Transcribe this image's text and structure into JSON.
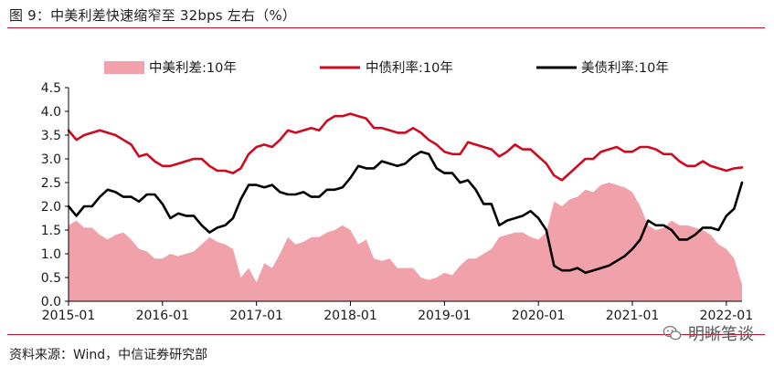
{
  "figure": {
    "title": "图 9：中美利差快速缩窄至 32bps 左右（%）",
    "source": "资料来源：Wind，中信证券研究部",
    "watermark": "明晰笔谈"
  },
  "colors": {
    "spread_fill": "#f0a1aa",
    "cn_line": "#cf0a1e",
    "us_line": "#000000",
    "rule": "#c8102e"
  },
  "chart_data": {
    "type": "line",
    "title": "",
    "xlabel": "",
    "ylabel": "",
    "ylim": [
      0,
      4.5
    ],
    "yticks": [
      0.0,
      0.5,
      1.0,
      1.5,
      2.0,
      2.5,
      3.0,
      3.5,
      4.0,
      4.5
    ],
    "ytick_labels": [
      "0.0",
      "0.5",
      "1.0",
      "1.5",
      "2.0",
      "2.5",
      "3.0",
      "3.5",
      "4.0",
      "4.5"
    ],
    "xlim": [
      "2015-01",
      "2022-03"
    ],
    "xticks": [
      "2015-01",
      "2016-01",
      "2017-01",
      "2018-01",
      "2019-01",
      "2020-01",
      "2021-01",
      "2022-01"
    ],
    "grid": false,
    "legend": "top",
    "x": [
      "2015-01",
      "2015-02",
      "2015-03",
      "2015-04",
      "2015-05",
      "2015-06",
      "2015-07",
      "2015-08",
      "2015-09",
      "2015-10",
      "2015-11",
      "2015-12",
      "2016-01",
      "2016-02",
      "2016-03",
      "2016-04",
      "2016-05",
      "2016-06",
      "2016-07",
      "2016-08",
      "2016-09",
      "2016-10",
      "2016-11",
      "2016-12",
      "2017-01",
      "2017-02",
      "2017-03",
      "2017-04",
      "2017-05",
      "2017-06",
      "2017-07",
      "2017-08",
      "2017-09",
      "2017-10",
      "2017-11",
      "2017-12",
      "2018-01",
      "2018-02",
      "2018-03",
      "2018-04",
      "2018-05",
      "2018-06",
      "2018-07",
      "2018-08",
      "2018-09",
      "2018-10",
      "2018-11",
      "2018-12",
      "2019-01",
      "2019-02",
      "2019-03",
      "2019-04",
      "2019-05",
      "2019-06",
      "2019-07",
      "2019-08",
      "2019-09",
      "2019-10",
      "2019-11",
      "2019-12",
      "2020-01",
      "2020-02",
      "2020-03",
      "2020-04",
      "2020-05",
      "2020-06",
      "2020-07",
      "2020-08",
      "2020-09",
      "2020-10",
      "2020-11",
      "2020-12",
      "2021-01",
      "2021-02",
      "2021-03",
      "2021-04",
      "2021-05",
      "2021-06",
      "2021-07",
      "2021-08",
      "2021-09",
      "2021-10",
      "2021-11",
      "2021-12",
      "2022-01",
      "2022-02",
      "2022-03"
    ],
    "series": [
      {
        "name": "中美利差:10年",
        "type": "area",
        "values": [
          1.6,
          1.7,
          1.55,
          1.55,
          1.4,
          1.3,
          1.4,
          1.45,
          1.3,
          1.1,
          1.05,
          0.9,
          0.9,
          1.0,
          0.95,
          1.0,
          1.05,
          1.2,
          1.35,
          1.25,
          1.2,
          1.1,
          0.5,
          0.7,
          0.4,
          0.8,
          0.7,
          1.0,
          1.35,
          1.2,
          1.25,
          1.35,
          1.35,
          1.45,
          1.5,
          1.6,
          1.5,
          1.2,
          1.3,
          0.9,
          0.85,
          0.9,
          0.7,
          0.7,
          0.7,
          0.5,
          0.45,
          0.5,
          0.6,
          0.55,
          0.75,
          0.9,
          0.9,
          1.0,
          1.1,
          1.35,
          1.4,
          1.45,
          1.45,
          1.35,
          1.3,
          1.45,
          2.1,
          2.0,
          2.15,
          2.2,
          2.35,
          2.3,
          2.45,
          2.5,
          2.45,
          2.4,
          2.3,
          2.0,
          1.6,
          1.5,
          1.55,
          1.7,
          1.6,
          1.6,
          1.55,
          1.5,
          1.4,
          1.2,
          1.1,
          0.9,
          0.35
        ]
      },
      {
        "name": "中债利率:10年",
        "type": "line",
        "values": [
          3.6,
          3.4,
          3.5,
          3.55,
          3.6,
          3.55,
          3.5,
          3.4,
          3.3,
          3.05,
          3.1,
          2.95,
          2.85,
          2.85,
          2.9,
          2.95,
          3.0,
          3.0,
          2.85,
          2.75,
          2.75,
          2.7,
          2.8,
          3.1,
          3.25,
          3.3,
          3.25,
          3.4,
          3.6,
          3.55,
          3.6,
          3.65,
          3.6,
          3.8,
          3.9,
          3.9,
          3.95,
          3.9,
          3.85,
          3.65,
          3.65,
          3.6,
          3.55,
          3.55,
          3.65,
          3.55,
          3.4,
          3.3,
          3.15,
          3.1,
          3.1,
          3.35,
          3.3,
          3.25,
          3.2,
          3.05,
          3.15,
          3.3,
          3.2,
          3.2,
          3.05,
          2.9,
          2.65,
          2.55,
          2.7,
          2.85,
          3.0,
          3.0,
          3.15,
          3.2,
          3.25,
          3.15,
          3.15,
          3.25,
          3.25,
          3.2,
          3.1,
          3.1,
          2.95,
          2.85,
          2.85,
          2.95,
          2.85,
          2.8,
          2.75,
          2.8,
          2.82
        ]
      },
      {
        "name": "美债利率:10年",
        "type": "line",
        "values": [
          2.0,
          1.8,
          2.0,
          2.0,
          2.2,
          2.35,
          2.3,
          2.2,
          2.2,
          2.1,
          2.25,
          2.25,
          2.05,
          1.75,
          1.85,
          1.8,
          1.8,
          1.6,
          1.45,
          1.55,
          1.6,
          1.75,
          2.15,
          2.45,
          2.45,
          2.4,
          2.45,
          2.3,
          2.25,
          2.25,
          2.3,
          2.2,
          2.2,
          2.35,
          2.35,
          2.4,
          2.6,
          2.85,
          2.8,
          2.8,
          2.95,
          2.9,
          2.85,
          2.9,
          3.05,
          3.15,
          3.1,
          2.8,
          2.7,
          2.7,
          2.5,
          2.55,
          2.35,
          2.05,
          2.05,
          1.6,
          1.7,
          1.75,
          1.8,
          1.9,
          1.75,
          1.5,
          0.75,
          0.65,
          0.65,
          0.7,
          0.6,
          0.65,
          0.7,
          0.75,
          0.85,
          0.95,
          1.1,
          1.3,
          1.7,
          1.6,
          1.6,
          1.5,
          1.3,
          1.3,
          1.4,
          1.55,
          1.55,
          1.5,
          1.8,
          1.95,
          2.5
        ]
      }
    ]
  }
}
